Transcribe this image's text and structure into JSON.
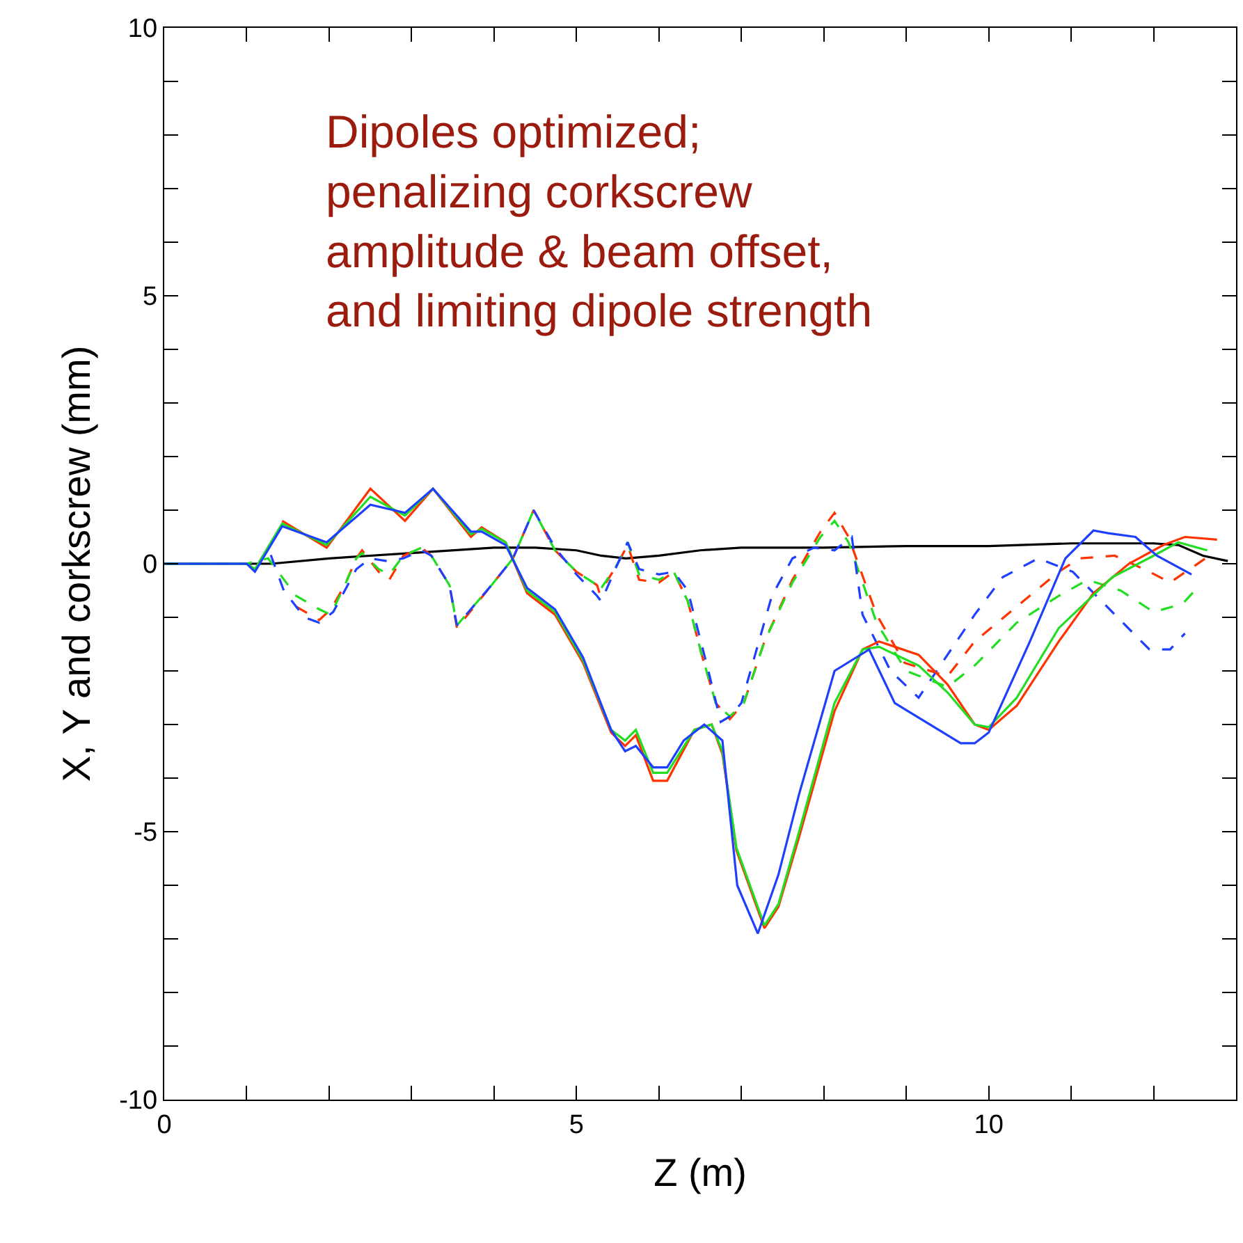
{
  "chart_data": {
    "type": "line",
    "xlabel": "Z (m)",
    "ylabel": "X, Y and corkscrew (mm)",
    "annotations": [
      "Dipoles optimized;\npenalizing corkscrew\namplitude & beam offset,\nand limiting dipole strength"
    ],
    "xlim": [
      0,
      13
    ],
    "ylim": [
      -10,
      10
    ],
    "xticks": [
      0,
      {
        "value": 1,
        "label": null
      },
      {
        "value": 2,
        "label": null
      },
      {
        "value": 3,
        "label": null
      },
      {
        "value": 4,
        "label": null
      },
      5,
      {
        "value": 6,
        "label": null
      },
      {
        "value": 7,
        "label": null
      },
      {
        "value": 8,
        "label": null
      },
      {
        "value": 9,
        "label": null
      },
      10,
      {
        "value": 11,
        "label": null
      },
      {
        "value": 12,
        "label": null
      }
    ],
    "yticks": [
      -10,
      {
        "value": -9,
        "label": null
      },
      {
        "value": -8,
        "label": null
      },
      {
        "value": -7,
        "label": null
      },
      {
        "value": -6,
        "label": null
      },
      -5,
      {
        "value": -4,
        "label": null
      },
      {
        "value": -3,
        "label": null
      },
      {
        "value": -2,
        "label": null
      },
      {
        "value": -1,
        "label": null
      },
      0,
      {
        "value": 1,
        "label": null
      },
      {
        "value": 2,
        "label": null
      },
      {
        "value": 3,
        "label": null
      },
      {
        "value": 4,
        "label": null
      },
      5,
      {
        "value": 6,
        "label": null
      },
      {
        "value": 7,
        "label": null
      },
      {
        "value": 8,
        "label": null
      },
      {
        "value": 9,
        "label": null
      },
      10
    ],
    "marker": "none",
    "series": [
      {
        "color": "#000000",
        "line_style": "solid",
        "x": [
          0,
          1.3,
          2,
          3,
          4,
          4.5,
          5,
          5.3,
          5.6,
          6,
          6.5,
          7,
          8,
          9,
          10,
          11,
          12,
          12.3,
          12.6,
          12.9
        ],
        "values": [
          0,
          0,
          0.1,
          0.2,
          0.3,
          0.3,
          0.25,
          0.15,
          0.1,
          0.15,
          0.25,
          0.3,
          0.3,
          0.33,
          0.33,
          0.38,
          0.38,
          0.35,
          0.15,
          0.05
        ]
      },
      {
        "color": "#ff3300",
        "line_style": "dashed",
        "x": [
          1.6,
          1.88,
          2.02,
          2.19,
          2.33,
          2.4,
          2.6,
          2.73,
          2.9,
          3.12,
          3.24,
          3.46,
          3.55,
          3.97,
          4.23,
          4.48,
          4.74,
          5,
          5.25,
          5.28,
          5.5,
          5.62,
          5.76,
          6,
          6.18,
          6.35,
          6.52,
          6.69,
          6.86,
          7.03,
          7.28,
          7.62,
          7.96,
          8.13,
          8.3,
          8.64,
          8.98,
          9.5,
          9.83,
          10.34,
          10.85,
          11.1,
          11.53,
          11.95,
          12.2,
          12.63
        ],
        "values": [
          -0.8,
          -1.05,
          -0.85,
          -0.4,
          0.1,
          0.25,
          -0.15,
          -0.3,
          0.15,
          0.3,
          0.15,
          -0.4,
          -1.2,
          -0.4,
          0.1,
          1,
          0.25,
          -0.15,
          -0.4,
          -0.55,
          0,
          0.35,
          -0.3,
          -0.35,
          -0.15,
          -0.7,
          -1.7,
          -2.6,
          -2.9,
          -2.6,
          -1.45,
          -0.3,
          0.6,
          0.95,
          0.5,
          -0.95,
          -1.85,
          -2.1,
          -1.45,
          -0.8,
          -0.15,
          0.1,
          0.15,
          -0.15,
          -0.35,
          0.1
        ]
      },
      {
        "color": "#22dd22",
        "line_style": "dashed",
        "x": [
          0,
          1,
          1.26,
          1.6,
          1.88,
          2.02,
          2.19,
          2.33,
          2.4,
          2.6,
          2.73,
          2.9,
          3.12,
          3.24,
          3.46,
          3.55,
          3.97,
          4.23,
          4.48,
          4.74,
          5,
          5.25,
          5.28,
          5.5,
          5.62,
          5.76,
          6,
          6.18,
          6.35,
          6.52,
          6.69,
          6.86,
          7.03,
          7.28,
          7.62,
          7.96,
          8.13,
          8.3,
          8.64,
          9,
          9.5,
          9.83,
          10.34,
          10.85,
          11.2,
          11.6,
          12,
          12.35,
          12.5
        ],
        "values": [
          0,
          0,
          0.1,
          -0.6,
          -0.85,
          -0.95,
          -0.4,
          0.1,
          0.2,
          -0.1,
          -0.2,
          0.15,
          0.3,
          0.15,
          -0.4,
          -1.15,
          -0.4,
          0.1,
          1,
          0.25,
          -0.15,
          -0.4,
          -0.5,
          0,
          0.4,
          -0.2,
          -0.3,
          -0.15,
          -0.7,
          -1.7,
          -2.6,
          -2.85,
          -2.6,
          -1.45,
          -0.35,
          0.5,
          0.8,
          0.4,
          -1.1,
          -2,
          -2.3,
          -1.9,
          -1.1,
          -0.6,
          -0.3,
          -0.5,
          -0.9,
          -0.75,
          -0.5
        ]
      },
      {
        "color": "#1f3fff",
        "line_style": "dashed",
        "x": [
          0,
          1,
          1.1,
          1.26,
          1.45,
          1.7,
          1.88,
          2.05,
          2.33,
          2.5,
          2.7,
          2.9,
          3.12,
          3.24,
          3.46,
          3.55,
          3.97,
          4.23,
          4.48,
          4.74,
          5,
          5.25,
          5.3,
          5.5,
          5.62,
          5.76,
          6,
          6.18,
          6.35,
          6.6,
          6.75,
          6.86,
          7,
          7.37,
          7.62,
          7.88,
          8.13,
          8.34,
          8.47,
          8.81,
          9.15,
          9.5,
          9.83,
          10.17,
          10.6,
          11.02,
          11.53,
          11.95,
          12.2,
          12.38
        ],
        "values": [
          0,
          0,
          -0.1,
          0.3,
          -0.5,
          -1,
          -1.1,
          -0.9,
          -0.1,
          0.1,
          0.05,
          0.1,
          0.25,
          0.15,
          -0.4,
          -1.15,
          -0.4,
          0.1,
          1,
          0.3,
          -0.2,
          -0.6,
          -0.7,
          0,
          0.4,
          -0.1,
          -0.2,
          -0.15,
          -0.5,
          -2,
          -2.95,
          -2.85,
          -2.6,
          -0.6,
          0.1,
          0.3,
          0.25,
          0.5,
          -0.95,
          -2,
          -2.5,
          -1.7,
          -0.95,
          -0.25,
          0.1,
          -0.15,
          -0.95,
          -1.6,
          -1.6,
          -1.3
        ]
      },
      {
        "color": "#ff3300",
        "line_style": "solid",
        "x": [
          1.43,
          1.97,
          2.5,
          2.92,
          3.26,
          3.72,
          3.85,
          4.14,
          4.4,
          4.74,
          5.08,
          5.42,
          5.59,
          5.72,
          5.93,
          6.1,
          6.43,
          6.64,
          6.77,
          6.94,
          7.28,
          7.45,
          7.7,
          8.13,
          8.47,
          8.67,
          9.15,
          9.5,
          9.83,
          10,
          10.34,
          10.85,
          11.27,
          11.7,
          12.12,
          12.38,
          12.77
        ],
        "values": [
          0.8,
          0.3,
          1.4,
          0.8,
          1.4,
          0.5,
          0.68,
          0.4,
          -0.55,
          -0.95,
          -1.85,
          -3.15,
          -3.4,
          -3.2,
          -4.05,
          -4.05,
          -3.1,
          -3,
          -3.55,
          -5.35,
          -6.8,
          -6.4,
          -5.1,
          -2.75,
          -1.6,
          -1.45,
          -1.7,
          -2.25,
          -3,
          -3.1,
          -2.65,
          -1.45,
          -0.55,
          0,
          0.35,
          0.5,
          0.45
        ]
      },
      {
        "color": "#22dd22",
        "line_style": "solid",
        "x": [
          0,
          1,
          1.1,
          1.43,
          1.97,
          2.5,
          2.92,
          3.26,
          3.72,
          3.85,
          4.14,
          4.4,
          4.74,
          5.08,
          5.42,
          5.59,
          5.72,
          5.93,
          6.1,
          6.43,
          6.64,
          6.77,
          6.94,
          7.28,
          7.45,
          7.7,
          8.13,
          8.47,
          8.67,
          9.15,
          9.5,
          9.83,
          10,
          10.34,
          10.85,
          11.5,
          12,
          12.3,
          12.65
        ],
        "values": [
          0,
          0,
          -0.1,
          0.75,
          0.35,
          1.25,
          0.9,
          1.4,
          0.55,
          0.65,
          0.4,
          -0.5,
          -0.9,
          -1.8,
          -3.1,
          -3.3,
          -3.1,
          -3.9,
          -3.9,
          -3.1,
          -3,
          -3.5,
          -5.3,
          -6.75,
          -6.35,
          -5,
          -2.6,
          -1.6,
          -1.55,
          -1.9,
          -2.4,
          -3,
          -3.05,
          -2.5,
          -1.2,
          -0.25,
          0.15,
          0.4,
          0.25
        ]
      },
      {
        "color": "#1f3fff",
        "line_style": "solid",
        "x": [
          0,
          1,
          1.1,
          1.43,
          1.97,
          2.5,
          2.92,
          3.26,
          3.72,
          3.85,
          4.14,
          4.4,
          4.74,
          5.08,
          5.42,
          5.59,
          5.72,
          5.93,
          6.1,
          6.3,
          6.55,
          6.77,
          6.95,
          7.2,
          7.45,
          7.7,
          8.13,
          8.55,
          8.86,
          9.66,
          9.83,
          10,
          10.5,
          10.93,
          11.27,
          11.45,
          11.78,
          12.04,
          12.46
        ],
        "values": [
          0,
          0,
          -0.15,
          0.7,
          0.4,
          1.1,
          0.95,
          1.4,
          0.6,
          0.6,
          0.35,
          -0.45,
          -0.85,
          -1.75,
          -3.1,
          -3.5,
          -3.4,
          -3.8,
          -3.8,
          -3.3,
          -3,
          -3.3,
          -6,
          -6.9,
          -5.8,
          -4.3,
          -2,
          -1.6,
          -2.6,
          -3.35,
          -3.35,
          -3.15,
          -1.45,
          0.1,
          0.62,
          0.57,
          0.5,
          0.15,
          -0.2
        ]
      }
    ]
  }
}
